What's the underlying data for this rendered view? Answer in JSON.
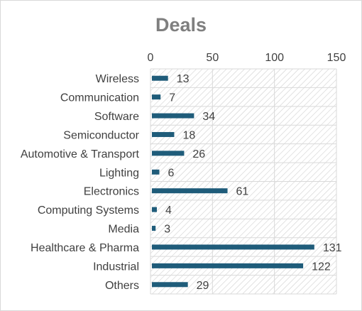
{
  "chart_data": {
    "type": "bar",
    "orientation": "horizontal",
    "title": "Deals",
    "xlabel": "",
    "ylabel": "",
    "xlim": [
      0,
      150
    ],
    "x_ticks": [
      0,
      50,
      100,
      150
    ],
    "x_tick_labels": [
      "0",
      "50",
      "100",
      "150"
    ],
    "x_axis_position": "top",
    "grid": true,
    "plot_background": "diagonal hatch",
    "legend": "none",
    "categories": [
      "Wireless",
      "Communication",
      "Software",
      "Semiconductor",
      "Automotive & Transport",
      "Lighting",
      "Electronics",
      "Computing Systems",
      "Media",
      "Healthcare & Pharma",
      "Industrial",
      "Others"
    ],
    "values": [
      13,
      7,
      34,
      18,
      26,
      6,
      61,
      4,
      3,
      131,
      122,
      29
    ],
    "bar_color": "#1f5c7a"
  }
}
